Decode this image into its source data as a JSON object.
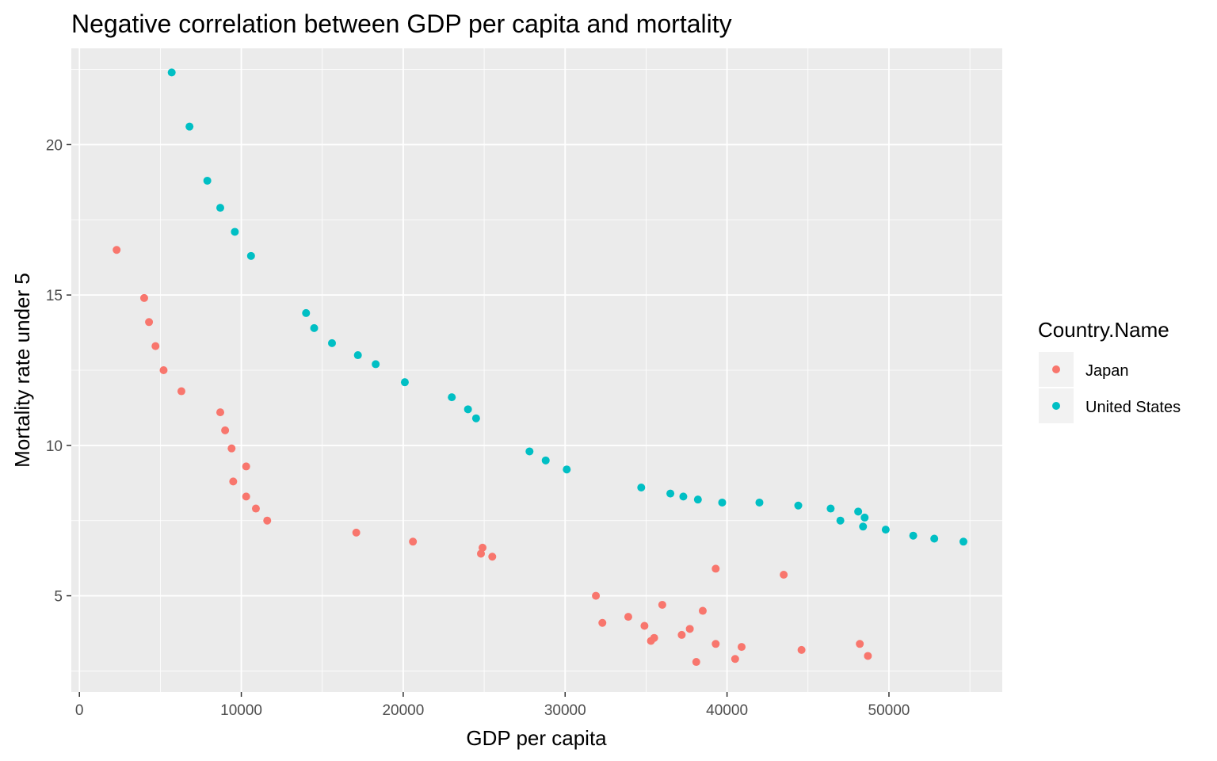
{
  "chart_data": {
    "type": "scatter",
    "title": "Negative correlation between GDP per capita and mortality",
    "xlabel": "GDP per capita",
    "ylabel": "Mortality rate under 5",
    "xlim": [
      -500,
      57000
    ],
    "ylim": [
      1.8,
      23.2
    ],
    "x_ticks": [
      0,
      10000,
      20000,
      30000,
      40000,
      50000
    ],
    "x_tick_labels": [
      "0",
      "10000",
      "20000",
      "30000",
      "40000",
      "50000"
    ],
    "y_ticks": [
      5,
      10,
      15,
      20
    ],
    "y_tick_labels": [
      "5",
      "10",
      "15",
      "20"
    ],
    "grid": true,
    "legend": {
      "title": "Country.Name",
      "position": "right"
    },
    "series": [
      {
        "name": "Japan",
        "color": "#F8766D",
        "points": [
          [
            2300,
            16.5
          ],
          [
            4000,
            14.9
          ],
          [
            4300,
            14.1
          ],
          [
            4700,
            13.3
          ],
          [
            5200,
            12.5
          ],
          [
            6300,
            11.8
          ],
          [
            8700,
            11.1
          ],
          [
            9000,
            10.5
          ],
          [
            9400,
            9.9
          ],
          [
            9500,
            8.8
          ],
          [
            10300,
            9.3
          ],
          [
            10300,
            8.3
          ],
          [
            10900,
            7.9
          ],
          [
            11600,
            7.5
          ],
          [
            17100,
            7.1
          ],
          [
            20600,
            6.8
          ],
          [
            24800,
            6.4
          ],
          [
            24900,
            6.6
          ],
          [
            25500,
            6.3
          ],
          [
            31900,
            5.0
          ],
          [
            32300,
            4.1
          ],
          [
            33900,
            4.3
          ],
          [
            34900,
            4.0
          ],
          [
            35300,
            3.5
          ],
          [
            35500,
            3.6
          ],
          [
            36000,
            4.7
          ],
          [
            37200,
            3.7
          ],
          [
            37700,
            3.9
          ],
          [
            38100,
            2.8
          ],
          [
            38500,
            4.5
          ],
          [
            39300,
            5.9
          ],
          [
            39300,
            3.4
          ],
          [
            40500,
            2.9
          ],
          [
            40900,
            3.3
          ],
          [
            43500,
            5.7
          ],
          [
            44600,
            3.2
          ],
          [
            48200,
            3.4
          ],
          [
            48700,
            3.0
          ]
        ]
      },
      {
        "name": "United States",
        "color": "#00BFC4",
        "points": [
          [
            5700,
            22.4
          ],
          [
            6800,
            20.6
          ],
          [
            7900,
            18.8
          ],
          [
            8700,
            17.9
          ],
          [
            9600,
            17.1
          ],
          [
            10600,
            16.3
          ],
          [
            14000,
            14.4
          ],
          [
            14500,
            13.9
          ],
          [
            15600,
            13.4
          ],
          [
            17200,
            13.0
          ],
          [
            18300,
            12.7
          ],
          [
            20100,
            12.1
          ],
          [
            23000,
            11.6
          ],
          [
            24000,
            11.2
          ],
          [
            24500,
            10.9
          ],
          [
            27800,
            9.8
          ],
          [
            28800,
            9.5
          ],
          [
            30100,
            9.2
          ],
          [
            34700,
            8.6
          ],
          [
            36500,
            8.4
          ],
          [
            37300,
            8.3
          ],
          [
            38200,
            8.2
          ],
          [
            39700,
            8.1
          ],
          [
            42000,
            8.1
          ],
          [
            44400,
            8.0
          ],
          [
            46400,
            7.9
          ],
          [
            47000,
            7.5
          ],
          [
            48100,
            7.8
          ],
          [
            48400,
            7.3
          ],
          [
            48500,
            7.6
          ],
          [
            49800,
            7.2
          ],
          [
            51500,
            7.0
          ],
          [
            52800,
            6.9
          ],
          [
            54600,
            6.8
          ]
        ]
      }
    ]
  }
}
